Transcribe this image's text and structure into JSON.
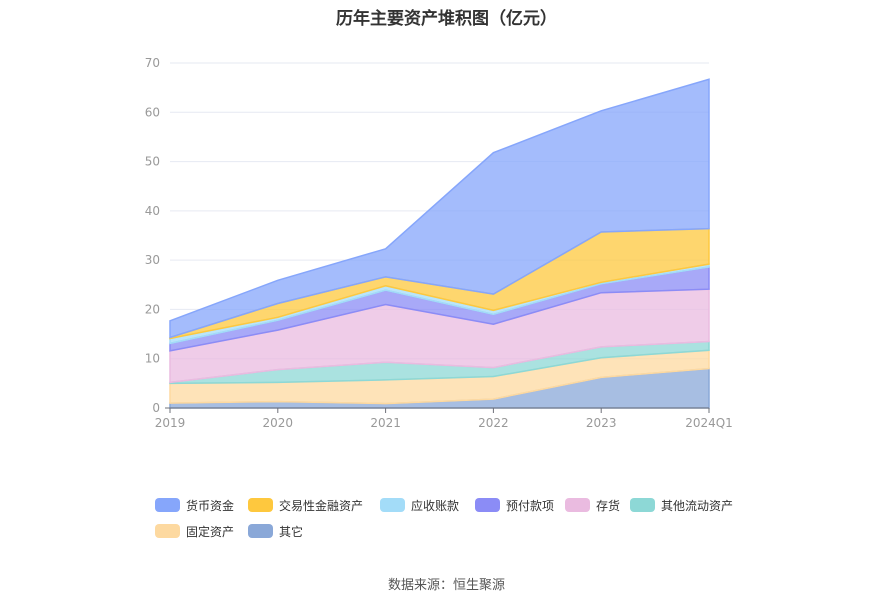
{
  "chart_data": {
    "type": "area",
    "stacked": true,
    "title": "历年主要资产堆积图（亿元）",
    "categories": [
      "2019",
      "2020",
      "2021",
      "2022",
      "2023",
      "2024Q1"
    ],
    "y_ticks": [
      "0",
      "10",
      "20",
      "30",
      "40",
      "50",
      "60",
      "70"
    ],
    "ylim": [
      0,
      70
    ],
    "grid": true,
    "legend_position": "bottom",
    "series": [
      {
        "name": "其它",
        "color": "#8aa8d8",
        "values": [
          1.0,
          1.3,
          0.9,
          1.8,
          6.2,
          8.0
        ]
      },
      {
        "name": "固定资产",
        "color": "#fdd9a0",
        "values": [
          4.0,
          3.9,
          4.8,
          4.6,
          4.0,
          3.7
        ]
      },
      {
        "name": "其他流动资产",
        "color": "#8dd8d6",
        "values": [
          0.2,
          2.6,
          3.6,
          1.8,
          2.2,
          1.8
        ]
      },
      {
        "name": "存货",
        "color": "#eabbe0",
        "values": [
          6.4,
          8.0,
          11.7,
          8.8,
          11.0,
          10.6
        ]
      },
      {
        "name": "预付款项",
        "color": "#8b8cf6",
        "values": [
          1.5,
          2.0,
          2.9,
          2.0,
          1.8,
          4.5
        ]
      },
      {
        "name": "应收账款",
        "color": "#a3dcf8",
        "values": [
          1.0,
          0.6,
          0.9,
          0.8,
          0.3,
          0.6
        ]
      },
      {
        "name": "交易性金融资产",
        "color": "#fec83e",
        "values": [
          0.2,
          2.8,
          1.8,
          3.3,
          10.2,
          7.2
        ]
      },
      {
        "name": "货币资金",
        "color": "#86a6fb",
        "values": [
          3.4,
          4.7,
          5.7,
          28.7,
          24.6,
          30.3
        ]
      }
    ]
  },
  "source": "数据来源：恒生聚源"
}
